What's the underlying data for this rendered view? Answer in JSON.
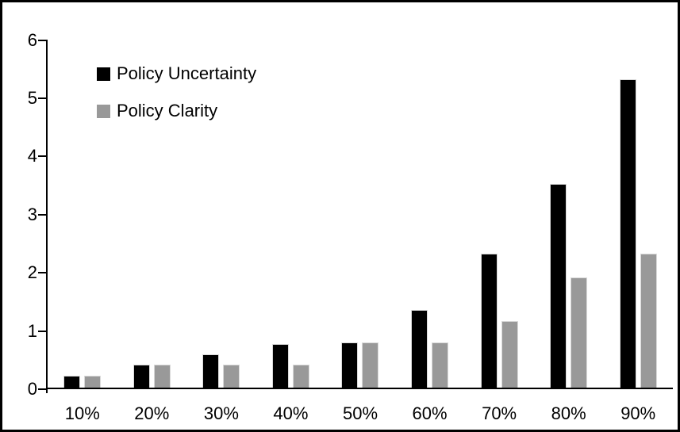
{
  "chart_data": {
    "type": "bar",
    "title": "",
    "xlabel": "",
    "ylabel": "",
    "categories": [
      "10%",
      "20%",
      "30%",
      "40%",
      "50%",
      "60%",
      "70%",
      "80%",
      "90%"
    ],
    "series": [
      {
        "name": "Policy Uncertainty",
        "color": "#000000",
        "values": [
          0.2,
          0.39,
          0.57,
          0.75,
          0.77,
          1.33,
          2.3,
          3.5,
          5.3
        ]
      },
      {
        "name": "Policy Clarity",
        "color": "#999999",
        "values": [
          0.2,
          0.39,
          0.39,
          0.39,
          0.77,
          0.77,
          1.15,
          1.9,
          2.3
        ]
      }
    ],
    "ylim": [
      0,
      6
    ],
    "y_ticks": [
      "0",
      "1",
      "2",
      "3",
      "4",
      "5",
      "6"
    ],
    "grid": false,
    "legend_position": "top-left",
    "axis_color": "#000000",
    "background_color": "#ffffff",
    "border_color": "#000000"
  }
}
